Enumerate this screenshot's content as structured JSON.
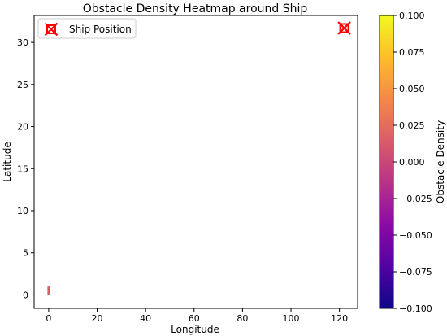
{
  "chart_data": {
    "type": "heatmap",
    "title": "Obstacle Density Heatmap around Ship",
    "xlabel": "Longitude",
    "ylabel": "Latitude",
    "xlim": [
      -6,
      127.5
    ],
    "ylim": [
      -1.6,
      33.2
    ],
    "x_ticks": [
      0,
      20,
      40,
      60,
      80,
      100,
      120
    ],
    "y_ticks": [
      0,
      5,
      10,
      15,
      20,
      25,
      30
    ],
    "grid": false,
    "cells": [
      {
        "x0": -0.5,
        "x1": 0.5,
        "y0": 0.0,
        "y1": 1.0,
        "value": 0.0
      }
    ],
    "markers": [
      {
        "name": "Ship Position",
        "x": 122,
        "y": 31.7,
        "color": "#ff0000",
        "shape": "x-box"
      }
    ],
    "legend": {
      "position": "top-left",
      "entries": [
        "Ship Position"
      ]
    },
    "colorbar": {
      "label": "Obstacle Density",
      "colormap": "plasma",
      "min": -0.1,
      "max": 0.1,
      "ticks": [
        "0.100",
        "0.075",
        "0.050",
        "0.025",
        "0.000",
        "−0.025",
        "−0.050",
        "−0.075",
        "−0.100"
      ],
      "tick_values": [
        0.1,
        0.075,
        0.05,
        0.025,
        0.0,
        -0.025,
        -0.05,
        -0.075,
        -0.1
      ],
      "gradient_stops": [
        "#0d0887",
        "#5302a3",
        "#8b0aa5",
        "#b83289",
        "#db5c68",
        "#f48849",
        "#febd2a",
        "#f0f921"
      ]
    }
  }
}
